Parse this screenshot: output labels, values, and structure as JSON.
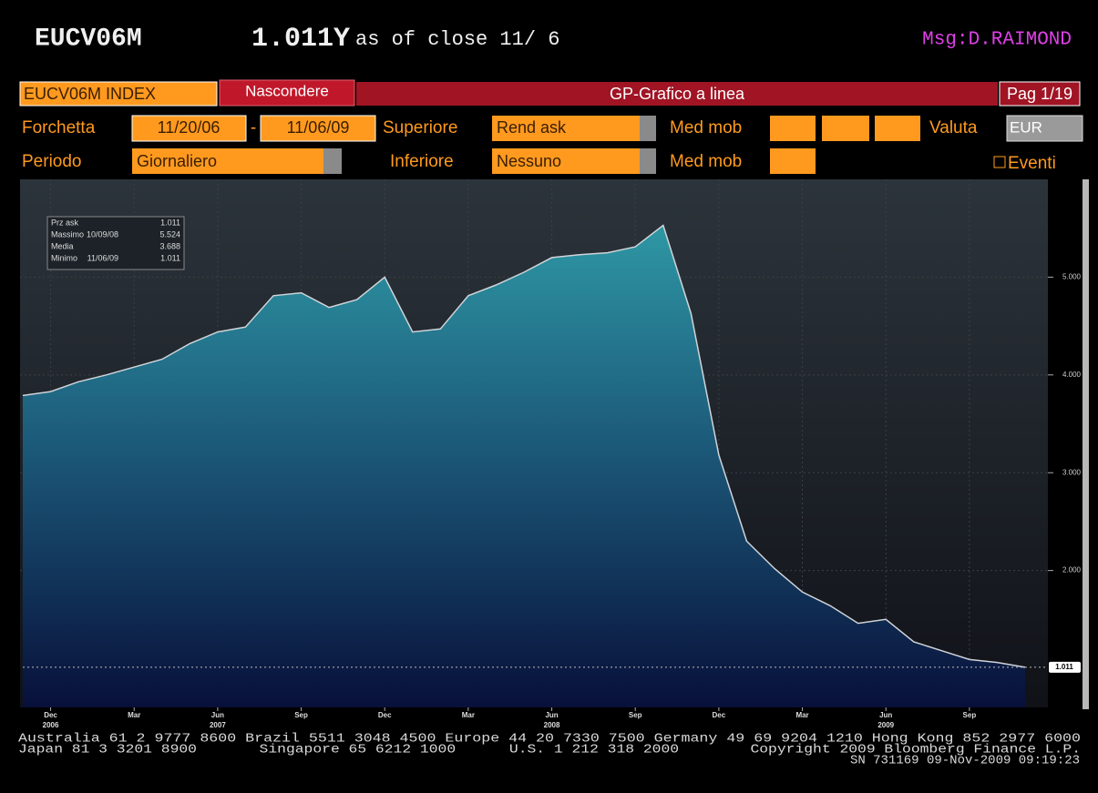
{
  "header": {
    "ticker": "EUCV06M",
    "value": "1.011Y",
    "as_of": "as of close 11/ 6",
    "msg": "Msg:D.RAIMOND"
  },
  "toolbar": {
    "security": "EUCV06M INDEX",
    "hide_button": "Nascondere",
    "chart_title": "GP-Grafico a linea",
    "page": "Pag 1/19"
  },
  "controls": {
    "range_label": "Forchetta",
    "start_date": "11/20/06",
    "dash": "-",
    "end_date": "11/06/09",
    "upper_label": "Superiore",
    "upper_value": "Rend ask",
    "ma_label_1": "Med mob",
    "currency_label": "Valuta",
    "currency": "EUR",
    "period_label": "Periodo",
    "period": "Giornaliero",
    "lower_label": "Inferiore",
    "lower_value": "Nessuno",
    "ma_label_2": "Med mob",
    "events": "Eventi"
  },
  "chart_data": {
    "type": "area",
    "x": [
      "2006-11",
      "2006-12",
      "2007-01",
      "2007-02",
      "2007-03",
      "2007-04",
      "2007-05",
      "2007-06",
      "2007-07",
      "2007-08",
      "2007-09",
      "2007-10",
      "2007-11",
      "2007-12",
      "2008-01",
      "2008-02",
      "2008-03",
      "2008-04",
      "2008-05",
      "2008-06",
      "2008-07",
      "2008-08",
      "2008-09",
      "2008-10",
      "2008-11",
      "2008-12",
      "2009-01",
      "2009-02",
      "2009-03",
      "2009-04",
      "2009-05",
      "2009-06",
      "2009-07",
      "2009-08",
      "2009-09",
      "2009-10",
      "2009-11"
    ],
    "series": [
      {
        "color": "#d0d4d8",
        "values": [
          3.79,
          3.83,
          3.93,
          4.0,
          4.08,
          4.16,
          4.32,
          4.44,
          4.49,
          4.81,
          4.84,
          4.69,
          4.77,
          5.0,
          4.44,
          4.47,
          4.81,
          4.92,
          5.05,
          5.2,
          5.23,
          5.25,
          5.31,
          5.53,
          4.63,
          3.18,
          2.3,
          2.02,
          1.78,
          1.64,
          1.46,
          1.5,
          1.27,
          1.18,
          1.09,
          1.06,
          1.011
        ]
      }
    ],
    "xlim": [
      "2006-11",
      "2009-11"
    ],
    "xticks": [
      {
        "value": "2006-12",
        "label": "Dec"
      },
      {
        "value": "2007-03",
        "label": "Mar"
      },
      {
        "value": "2007-06",
        "label": "Jun"
      },
      {
        "value": "2007-09",
        "label": "Sep"
      },
      {
        "value": "2007-12",
        "label": "Dec"
      },
      {
        "value": "2008-03",
        "label": "Mar"
      },
      {
        "value": "2008-06",
        "label": "Jun"
      },
      {
        "value": "2008-09",
        "label": "Sep"
      },
      {
        "value": "2008-12",
        "label": "Dec"
      },
      {
        "value": "2009-03",
        "label": "Mar"
      },
      {
        "value": "2009-06",
        "label": "Jun"
      },
      {
        "value": "2009-09",
        "label": "Sep"
      }
    ],
    "xyears": [
      {
        "value": "2006-12",
        "label": "2006"
      },
      {
        "value": "2007-06",
        "label": "2007"
      },
      {
        "value": "2008-06",
        "label": "2008"
      },
      {
        "value": "2009-06",
        "label": "2009"
      }
    ],
    "ylim": [
      0.6,
      6.0
    ],
    "yticks": [
      {
        "value": 2,
        "label": "2.000"
      },
      {
        "value": 3,
        "label": "3.000"
      },
      {
        "value": 4,
        "label": "4.000"
      },
      {
        "value": 5,
        "label": "5.000"
      }
    ],
    "grid": true,
    "last_value": 1.011,
    "stats": [
      {
        "label": "Prz ask",
        "value": 1.011
      },
      {
        "label": "Massimo",
        "date": "10/09/08",
        "value": 5.524
      },
      {
        "label": "Media",
        "value": 3.688
      },
      {
        "label": "Minimo",
        "date": "11/06/09",
        "value": 1.011
      }
    ]
  },
  "footer": {
    "lines": [
      "Australia 61 2 9777 8600 Brazil 5511 3048 4500 Europe 44 20 7330 7500 Germany 49 69 9204 1210 Hong Kong 852 2977 6000",
      "Japan 81 3 3201 8900       Singapore 65 6212 1000      U.S. 1 212 318 2000        Copyright 2009 Bloomberg Finance L.P.",
      "SN 731169 09-Nov-2009 09:19:23"
    ]
  }
}
